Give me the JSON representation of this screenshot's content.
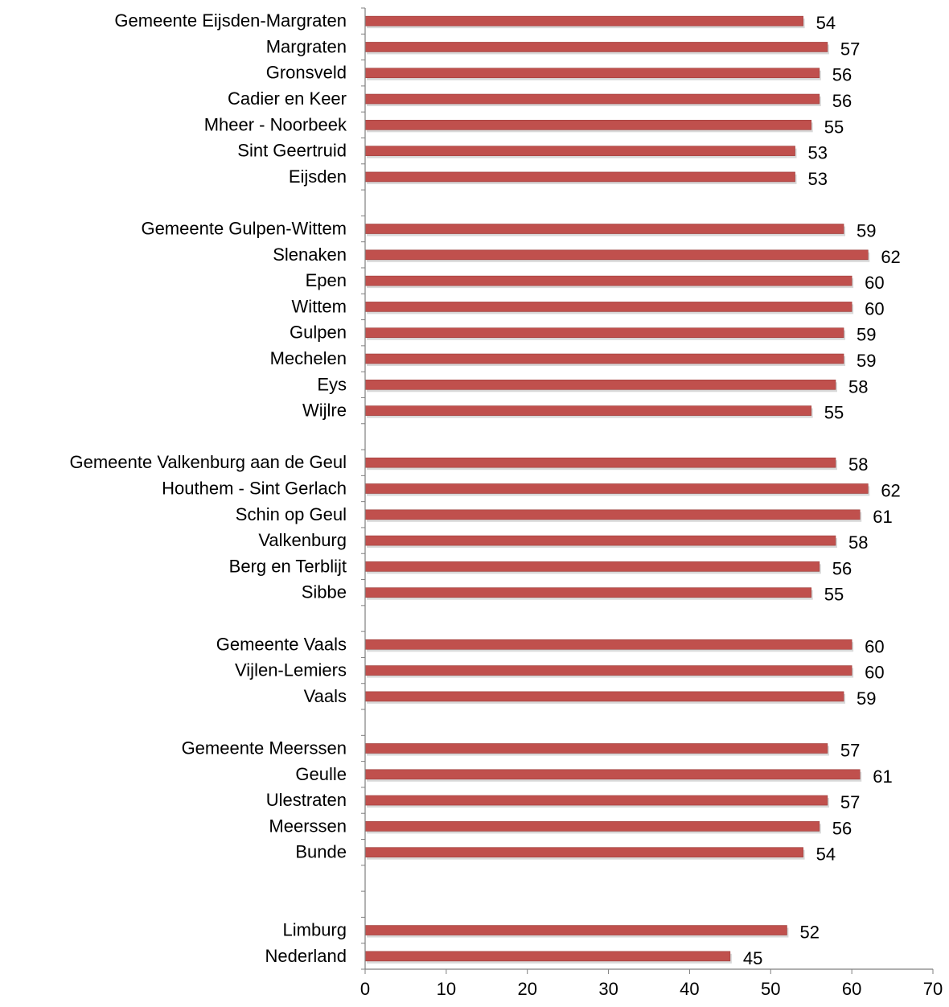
{
  "chart_data": {
    "type": "bar",
    "orientation": "horizontal",
    "categories": [
      "Gemeente Eijsden-Margraten",
      "Margraten",
      "Gronsveld",
      "Cadier en Keer",
      "Mheer - Noorbeek",
      "Sint Geertruid",
      "Eijsden",
      "",
      "Gemeente Gulpen-Wittem",
      "Slenaken",
      "Epen",
      "Wittem",
      "Gulpen",
      "Mechelen",
      "Eys",
      "Wijlre",
      "",
      "Gemeente Valkenburg aan de Geul",
      "Houthem - Sint Gerlach",
      "Schin op Geul",
      "Valkenburg",
      "Berg en Terblijt",
      "Sibbe",
      "",
      "Gemeente Vaals",
      "Vijlen-Lemiers",
      "Vaals",
      "",
      "Gemeente Meerssen",
      "Geulle",
      "Ulestraten",
      "Meerssen",
      "Bunde",
      "",
      "",
      "Limburg",
      "Nederland"
    ],
    "values": [
      54,
      57,
      56,
      56,
      55,
      53,
      53,
      null,
      59,
      62,
      60,
      60,
      59,
      59,
      58,
      55,
      null,
      58,
      62,
      61,
      58,
      56,
      55,
      null,
      60,
      60,
      59,
      null,
      57,
      61,
      57,
      56,
      54,
      null,
      null,
      52,
      45
    ],
    "xlim": [
      0,
      70
    ],
    "xticks": [
      "0",
      "10",
      "20",
      "30",
      "40",
      "50",
      "60",
      "70"
    ],
    "title": "",
    "xlabel": "",
    "ylabel": "",
    "grid": false,
    "legend": "none",
    "colors": {
      "bar": "#C0504D",
      "bar_edge": "#9B3B38",
      "axis": "#7F7F7F",
      "text": "#000000"
    }
  }
}
